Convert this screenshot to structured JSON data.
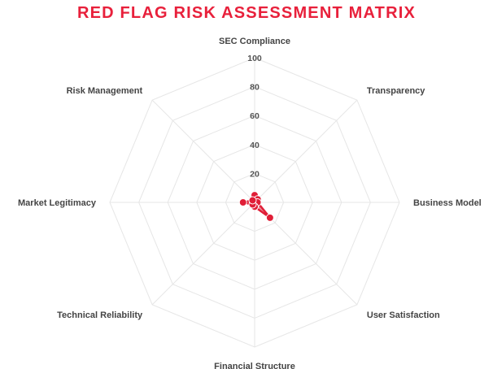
{
  "chart_data": {
    "type": "radar",
    "title": "RED FLAG RISK ASSESSMENT MATRIX",
    "axes": [
      "SEC Compliance",
      "Transparency",
      "Business Model",
      "User Satisfaction",
      "Financial Structure",
      "Technical Reliability",
      "Market Legitimacy",
      "Risk Management"
    ],
    "r_ticks": [
      "20",
      "40",
      "60",
      "80",
      "100"
    ],
    "r_range": [
      0,
      100
    ],
    "series": [
      {
        "values": [
          5,
          3,
          2,
          15,
          3,
          2,
          8,
          2
        ]
      }
    ],
    "grid": true,
    "colors": {
      "title": "#e8203b",
      "series": "#e01e37",
      "grid": "#e6e6e6",
      "label": "#444444"
    }
  }
}
